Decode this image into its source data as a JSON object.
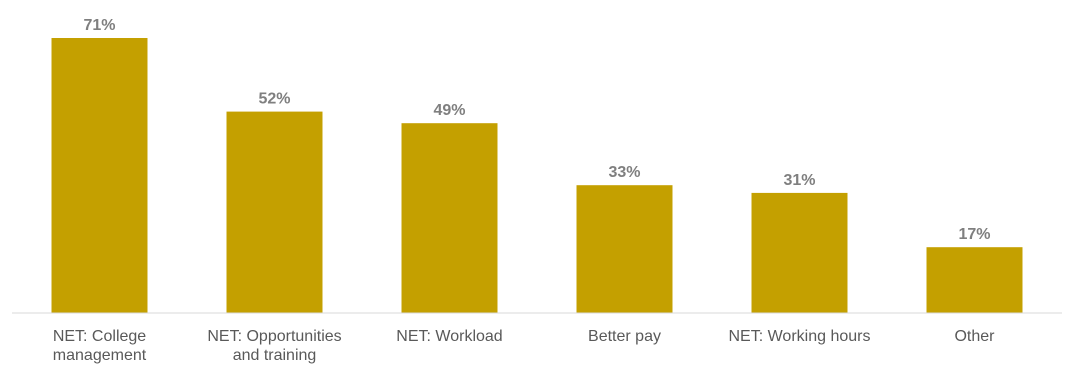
{
  "chart_data": {
    "type": "bar",
    "categories": [
      [
        "NET: College",
        "management"
      ],
      [
        "NET: Opportunities",
        "and training"
      ],
      [
        "NET: Workload"
      ],
      [
        "Better pay"
      ],
      [
        "NET: Working hours"
      ],
      [
        "Other"
      ]
    ],
    "values": [
      71,
      52,
      49,
      33,
      31,
      17
    ],
    "value_labels": [
      "71%",
      "52%",
      "49%",
      "33%",
      "31%",
      "17%"
    ],
    "unit": "%",
    "ylim": [
      0,
      75
    ],
    "grid": false,
    "legend": "none",
    "colors": {
      "bar": "#c4a000",
      "axis": "#d9d9d9",
      "value_text": "#7f7f7f",
      "category_text": "#595959"
    }
  }
}
